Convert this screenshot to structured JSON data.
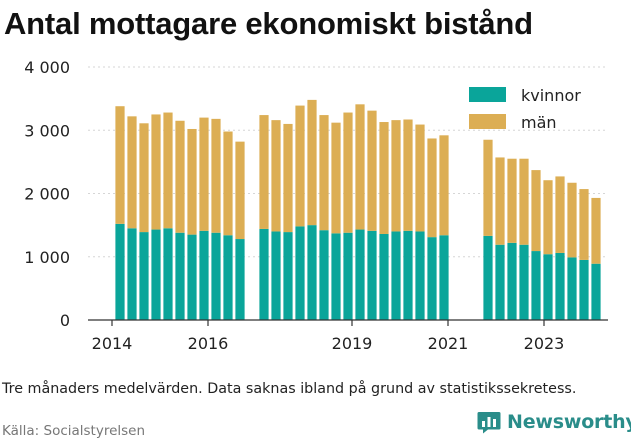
{
  "title": "Antal mottagare ekonomiskt bistånd",
  "note": "Tre månaders medelvärden. Data saknas ibland på grund av statistikssekretess.",
  "source": "Källa: Socialstyrelsen",
  "brand": {
    "name": "Newsworthy",
    "logo_icon": "newsworthy-logo-icon"
  },
  "colors": {
    "kvinnor": "#0aa59a",
    "man": "#dcae54",
    "axis": "#333333",
    "grid": "#d6d6d6"
  },
  "chart_data": {
    "type": "bar",
    "stacked": true,
    "title": "Antal mottagare ekonomiskt bistånd",
    "xlabel": "",
    "ylabel": "",
    "ylim": [
      0,
      4000
    ],
    "yticks": [
      0,
      1000,
      2000,
      3000,
      4000
    ],
    "ytick_labels": [
      "0",
      "1 000",
      "2 000",
      "3 000",
      "4 000"
    ],
    "x_time_range": [
      "2013-09",
      "2024-07"
    ],
    "xticks": [
      {
        "x": "2014-03",
        "label": "2014"
      },
      {
        "x": "2016-03",
        "label": "2016"
      },
      {
        "x": "2019-03",
        "label": "2019"
      },
      {
        "x": "2021-03",
        "label": "2021"
      },
      {
        "x": "2023-03",
        "label": "2023"
      }
    ],
    "legend_position": "top-right",
    "grid": "horizontal dotted",
    "periods": [
      "2014-05",
      "2014-08",
      "2014-11",
      "2015-02",
      "2015-05",
      "2015-08",
      "2015-11",
      "2016-02",
      "2016-05",
      "2016-08",
      "2016-11",
      "2017-02",
      "2017-05",
      "2017-08",
      "2017-11",
      "2018-02",
      "2018-05",
      "2018-08",
      "2018-11",
      "2019-02",
      "2019-05",
      "2019-08",
      "2019-11",
      "2020-02",
      "2020-05",
      "2020-08",
      "2020-11",
      "2021-02",
      "2022-01",
      "2022-04",
      "2022-07",
      "2022-10",
      "2023-01",
      "2023-04",
      "2023-07",
      "2023-10",
      "2024-01",
      "2024-04"
    ],
    "series": [
      {
        "name": "kvinnor",
        "color": "#0aa59a",
        "values": [
          1520,
          1450,
          1390,
          1430,
          1450,
          1380,
          1350,
          1410,
          1380,
          1340,
          1280,
          null,
          1440,
          1400,
          1390,
          1480,
          1500,
          1420,
          1370,
          1380,
          1430,
          1410,
          1360,
          1400,
          1410,
          1400,
          1310,
          1340,
          1330,
          1190,
          1220,
          1190,
          1090,
          1040,
          1060,
          990,
          950,
          890
        ]
      },
      {
        "name": "män",
        "color": "#dcae54",
        "values": [
          1860,
          1770,
          1720,
          1820,
          1830,
          1770,
          1670,
          1790,
          1800,
          1640,
          1540,
          null,
          1800,
          1760,
          1710,
          1910,
          1980,
          1820,
          1750,
          1900,
          1980,
          1900,
          1770,
          1760,
          1760,
          1690,
          1560,
          1580,
          1520,
          1380,
          1330,
          1360,
          1280,
          1170,
          1210,
          1180,
          1120,
          1040
        ]
      }
    ]
  }
}
